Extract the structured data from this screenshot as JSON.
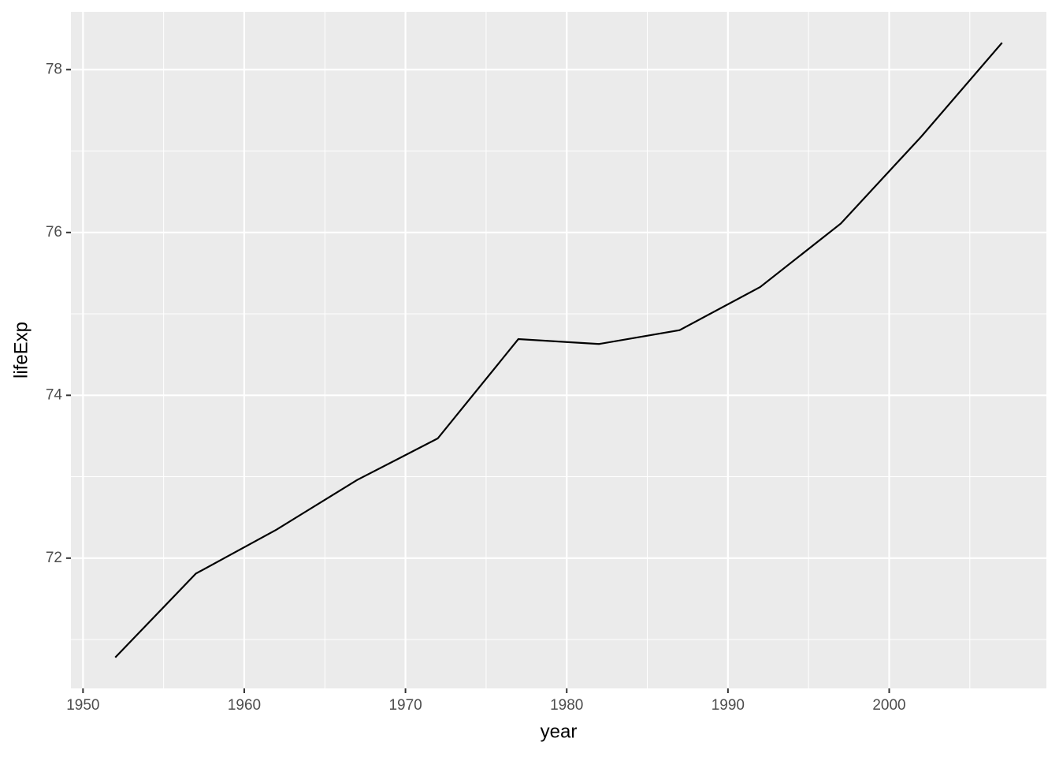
{
  "chart_data": {
    "type": "line",
    "x_label": "year",
    "y_label": "lifeExp",
    "x": [
      1952,
      1957,
      1962,
      1967,
      1972,
      1977,
      1982,
      1987,
      1992,
      1997,
      2002,
      2007
    ],
    "series": [
      {
        "color": "#000000",
        "values": [
          70.78,
          71.81,
          72.35,
          72.96,
          73.47,
          74.69,
          74.63,
          74.8,
          75.33,
          76.11,
          77.18,
          78.33
        ]
      }
    ],
    "xlim": [
      1949.25,
      2009.75
    ],
    "xticks": [
      1950,
      1960,
      1970,
      1980,
      1990,
      2000
    ],
    "x_minor_breaks": [
      1955,
      1965,
      1975,
      1985,
      1995,
      2005
    ],
    "ylim": [
      70.4,
      78.71
    ],
    "yticks": [
      72,
      74,
      76,
      78
    ],
    "y_minor_breaks": [
      71,
      73,
      75,
      77
    ],
    "grid": true
  }
}
